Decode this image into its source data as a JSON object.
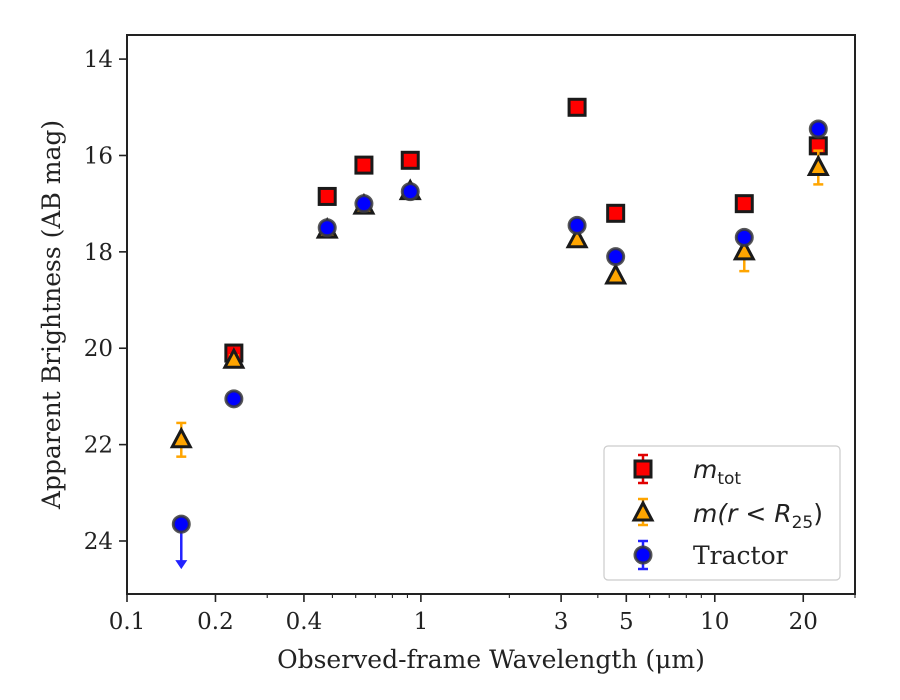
{
  "chart_data": {
    "type": "scatter",
    "xlabel": "Observed-frame Wavelength (μm)",
    "ylabel": "Apparent Brightness (AB mag)",
    "xscale": "log",
    "xlim": [
      0.1,
      30
    ],
    "ylim": [
      25.1,
      13.5
    ],
    "y_inverted": true,
    "x_major_ticks": [
      {
        "value": 0.1,
        "label": "0.1"
      },
      {
        "value": 0.2,
        "label": "0.2"
      },
      {
        "value": 0.4,
        "label": "0.4"
      },
      {
        "value": 1,
        "label": "1"
      },
      {
        "value": 3,
        "label": "3"
      },
      {
        "value": 5,
        "label": "5"
      },
      {
        "value": 10,
        "label": "10"
      },
      {
        "value": 20,
        "label": "20"
      }
    ],
    "y_major_ticks": [
      {
        "value": 14,
        "label": "14"
      },
      {
        "value": 16,
        "label": "16"
      },
      {
        "value": 18,
        "label": "18"
      },
      {
        "value": 20,
        "label": "20"
      },
      {
        "value": 22,
        "label": "22"
      },
      {
        "value": 24,
        "label": "24"
      }
    ],
    "legend_position": "lower-right",
    "series": [
      {
        "key": "mtot",
        "legend_main": "m",
        "legend_sub": "tot",
        "marker": "square",
        "face_color": "#ff0000",
        "edge_color": "#1a1a1a",
        "error_color": "#e00000",
        "points": [
          {
            "x": 0.231,
            "y": 20.1,
            "yerr": 0.1
          },
          {
            "x": 0.48,
            "y": 16.85,
            "yerr": 0.05
          },
          {
            "x": 0.64,
            "y": 16.2,
            "yerr": 0.05
          },
          {
            "x": 0.92,
            "y": 16.1,
            "yerr": 0.05
          },
          {
            "x": 3.4,
            "y": 15.0,
            "yerr": 0.05
          },
          {
            "x": 4.6,
            "y": 17.2,
            "yerr": 0.05
          },
          {
            "x": 12.6,
            "y": 17.0,
            "yerr": 0.05
          },
          {
            "x": 22.5,
            "y": 15.8,
            "yerr": 0.1
          }
        ]
      },
      {
        "key": "mr25",
        "legend_main": "m(r < R",
        "legend_sub": "25",
        "legend_tail": ")",
        "marker": "triangle",
        "face_color": "#ffa500",
        "edge_color": "#1a1a1a",
        "error_color": "#ffa500",
        "points": [
          {
            "x": 0.153,
            "y": 21.9,
            "yerr": 0.35
          },
          {
            "x": 0.231,
            "y": 20.25,
            "yerr": 0.1
          },
          {
            "x": 0.48,
            "y": 17.55,
            "yerr": 0.05
          },
          {
            "x": 0.64,
            "y": 17.05,
            "yerr": 0.05
          },
          {
            "x": 0.92,
            "y": 16.75,
            "yerr": 0.05
          },
          {
            "x": 3.4,
            "y": 17.75,
            "yerr": 0.05
          },
          {
            "x": 4.6,
            "y": 18.5,
            "yerr": 0.05
          },
          {
            "x": 12.6,
            "y": 18.0,
            "yerr": 0.4
          },
          {
            "x": 22.5,
            "y": 16.25,
            "yerr": 0.35
          }
        ]
      },
      {
        "key": "tractor",
        "legend_main": "Tractor",
        "marker": "circle",
        "face_color": "#0000ff",
        "edge_color": "#3a3a3a",
        "error_color": "#2222ff",
        "points": [
          {
            "x": 0.153,
            "y": 23.65,
            "upper_limit": true
          },
          {
            "x": 0.231,
            "y": 21.05,
            "yerr": 0.05
          },
          {
            "x": 0.48,
            "y": 17.5,
            "yerr": 0.05
          },
          {
            "x": 0.64,
            "y": 17.0,
            "yerr": 0.05
          },
          {
            "x": 0.92,
            "y": 16.75,
            "yerr": 0.05
          },
          {
            "x": 3.4,
            "y": 17.45,
            "yerr": 0.05
          },
          {
            "x": 4.6,
            "y": 18.1,
            "yerr": 0.05
          },
          {
            "x": 12.6,
            "y": 17.7,
            "yerr": 0.05
          },
          {
            "x": 22.5,
            "y": 15.45,
            "yerr": 0.05
          }
        ]
      }
    ]
  }
}
